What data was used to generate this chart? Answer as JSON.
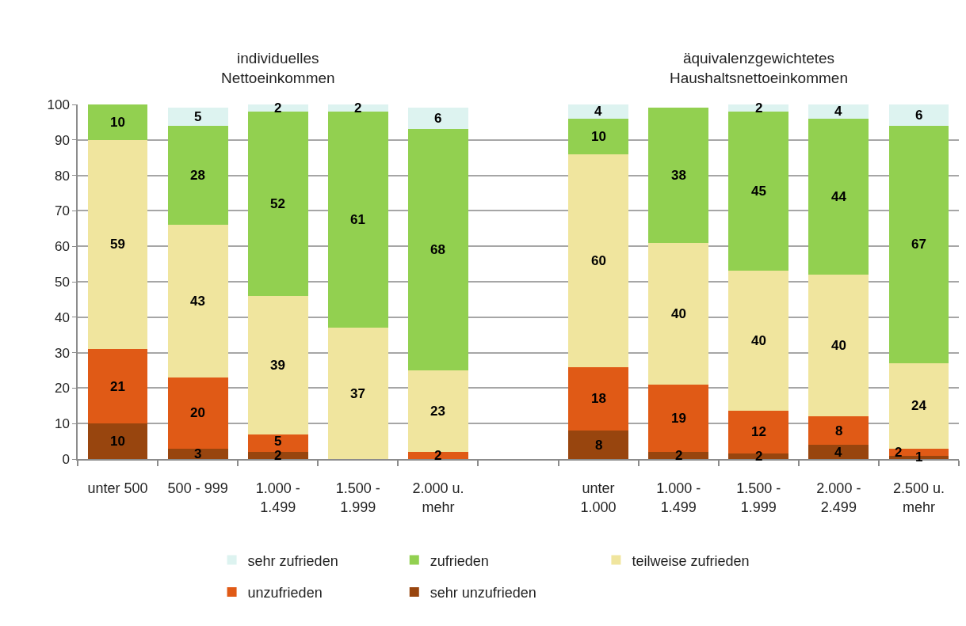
{
  "chart_data": {
    "type": "bar",
    "stacked": true,
    "categories": [
      "unter 500",
      "500 - 999",
      "1.000 -\n1.499",
      "1.500 -\n1.999",
      "2.000 u.\nmehr",
      null,
      "unter\n1.000",
      "1.000 -\n1.499",
      "1.500 -\n1.999",
      "2.000 -\n2.499",
      "2.500 u.\nmehr"
    ],
    "series": [
      {
        "name": "sehr unzufrieden",
        "color": "#98450e",
        "values": [
          10,
          3,
          2,
          null,
          null,
          null,
          8,
          2,
          1.6,
          4,
          1
        ],
        "value_labels": [
          "10",
          "3",
          "2",
          null,
          null,
          null,
          "8",
          "2",
          "2",
          "4",
          "1"
        ]
      },
      {
        "name": "unzufrieden",
        "color": "#e05a16",
        "values": [
          21,
          20,
          5,
          null,
          2,
          null,
          18,
          19,
          12.1,
          8,
          2
        ],
        "value_labels": [
          "21",
          "20",
          "5",
          null,
          "2",
          null,
          "18",
          "19",
          "12",
          "8",
          "2"
        ]
      },
      {
        "name": "teilweise zufrieden",
        "color": "#f0e59e",
        "values": [
          59,
          43,
          39,
          37,
          23,
          null,
          60,
          40,
          39.5,
          40,
          24
        ],
        "value_labels": [
          "59",
          "43",
          "39",
          "37",
          "23",
          null,
          "60",
          "40",
          "40",
          "40",
          "24"
        ]
      },
      {
        "name": "zufrieden",
        "color": "#92d050",
        "values": [
          10,
          28,
          52,
          61,
          68,
          null,
          10,
          38,
          44.9,
          44,
          67
        ],
        "value_labels": [
          "10",
          "28",
          "52",
          "61",
          "68",
          null,
          "10",
          "38",
          "45",
          "44",
          "67"
        ]
      },
      {
        "name": "sehr zufrieden",
        "color": "#ddf3f0",
        "values": [
          null,
          5,
          2,
          2,
          6,
          null,
          4,
          null,
          1.9,
          4,
          6
        ],
        "value_labels": [
          null,
          "5",
          "2",
          "2",
          "6",
          null,
          "4",
          null,
          "2",
          "4",
          "6"
        ]
      }
    ],
    "ylim": [
      0,
      100
    ],
    "yticks": [
      0,
      10,
      20,
      30,
      40,
      50,
      60,
      70,
      80,
      90,
      100
    ],
    "grid": "y",
    "legend": "bottom",
    "annotations": [
      "individuelles\nNettoeinkommen",
      "äquivalenzgewichtetes\nHaushaltsnettoeinkommen"
    ]
  }
}
